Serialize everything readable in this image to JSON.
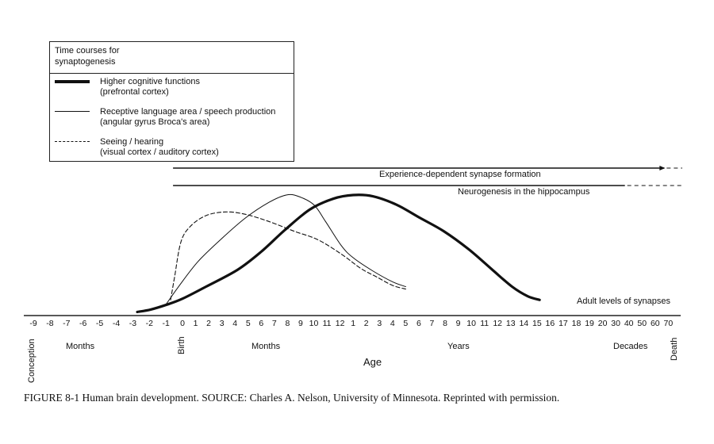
{
  "chart_data": {
    "type": "line",
    "title": "",
    "legend": {
      "title": [
        "Time courses for",
        "synaptogenesis"
      ],
      "placement": "top-left",
      "entries": [
        {
          "style": "thick-solid",
          "line1": "Higher cognitive functions",
          "line2": "(prefrontal cortex)"
        },
        {
          "style": "thin-solid",
          "line1": "Receptive language area / speech production",
          "line2": "(angular gyrus Broca's area)"
        },
        {
          "style": "dashed",
          "line1": "Seeing / hearing",
          "line2": "(visual cortex / auditory cortex)"
        }
      ]
    },
    "xlabel": "Age",
    "x_ticks": [
      "-9",
      "-8",
      "-7",
      "-6",
      "-5",
      "-4",
      "-3",
      "-2",
      "-1",
      "0",
      "1",
      "2",
      "3",
      "4",
      "5",
      "6",
      "7",
      "8",
      "9",
      "10",
      "11",
      "12",
      "1",
      "2",
      "3",
      "4",
      "5",
      "6",
      "7",
      "8",
      "9",
      "10",
      "11",
      "12",
      "13",
      "14",
      "15",
      "16",
      "17",
      "18",
      "19",
      "20",
      "30",
      "40",
      "50",
      "60",
      "70"
    ],
    "x_segments": [
      {
        "label": "Months",
        "from": "-9",
        "to": "-1"
      },
      {
        "label": "Months",
        "from": "0",
        "to": "12"
      },
      {
        "label": "Years",
        "from": "1",
        "to": "20"
      },
      {
        "label": "Decades",
        "from": "30",
        "to": "70"
      }
    ],
    "x_markers": {
      "start": "Conception",
      "birth": "Birth",
      "end": "Death"
    },
    "baseline_label": "Adult levels of synapses",
    "series": [
      {
        "name": "Higher cognitive functions (prefrontal cortex)",
        "style": "thick-solid",
        "points": [
          [
            6.27,
            3
          ],
          [
            7.08,
            5
          ],
          [
            8.04,
            9
          ],
          [
            9,
            14
          ],
          [
            10.8,
            24
          ],
          [
            13.2,
            38
          ],
          [
            15.0,
            53
          ],
          [
            16.8,
            71
          ],
          [
            18.7,
            88
          ],
          [
            20.5,
            97
          ],
          [
            22.0,
            100
          ],
          [
            23.5,
            99
          ],
          [
            25.3,
            92
          ],
          [
            27.1,
            81
          ],
          [
            28.9,
            70
          ],
          [
            30.8,
            55
          ],
          [
            32.6,
            38
          ],
          [
            34.1,
            24
          ],
          [
            35.3,
            16
          ],
          [
            36.2,
            13
          ]
        ]
      },
      {
        "name": "Receptive language area / speech production (angular gyrus Broca's area)",
        "style": "thin-solid",
        "points": [
          [
            8.04,
            10
          ],
          [
            8.76,
            24
          ],
          [
            10.2,
            45
          ],
          [
            12.0,
            64
          ],
          [
            13.8,
            81
          ],
          [
            15.6,
            94
          ],
          [
            16.9,
            100
          ],
          [
            17.8,
            99
          ],
          [
            19.0,
            92
          ],
          [
            19.9,
            78
          ],
          [
            21.1,
            58
          ],
          [
            22.0,
            48
          ],
          [
            23.5,
            37
          ],
          [
            25.0,
            28
          ],
          [
            26.0,
            24
          ]
        ]
      },
      {
        "name": "Seeing / hearing (visual cortex / auditory cortex)",
        "style": "dashed",
        "points": [
          [
            8.28,
            13
          ],
          [
            8.52,
            32
          ],
          [
            8.9,
            61
          ],
          [
            9.6,
            74
          ],
          [
            10.8,
            83
          ],
          [
            12.3,
            86
          ],
          [
            13.8,
            84
          ],
          [
            15.6,
            78
          ],
          [
            17.5,
            70
          ],
          [
            19.3,
            63
          ],
          [
            21.1,
            51
          ],
          [
            22.6,
            39
          ],
          [
            23.8,
            32
          ],
          [
            25.0,
            25
          ],
          [
            26.0,
            22
          ]
        ]
      }
    ],
    "spans": [
      {
        "label": "Experience-dependent synapse formation",
        "from": "0",
        "solid_to": "70",
        "continues": "dashed",
        "arrow": true
      },
      {
        "label": "Neurogenesis in the hippocampus",
        "from": "0",
        "solid_to": "40",
        "continues": "dashed",
        "arrow": false
      }
    ]
  },
  "caption": "FIGURE 8-1  Human brain development.  SOURCE: Charles A.  Nelson, University of Minnesota.  Reprinted with permission."
}
